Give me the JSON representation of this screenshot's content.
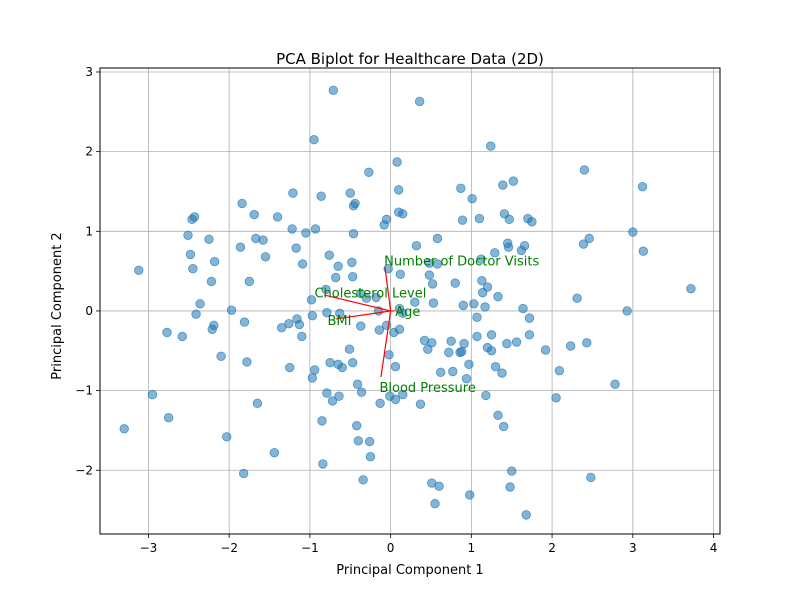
{
  "chart_data": {
    "type": "scatter",
    "title": "PCA Biplot for Healthcare Data (2D)",
    "xlabel": "Principal Component 1",
    "ylabel": "Principal Component 2",
    "xlim": [
      -3.6,
      4.08
    ],
    "ylim": [
      -2.8,
      3.05
    ],
    "grid": true,
    "x_ticks": [
      -3,
      -2,
      -1,
      0,
      1,
      2,
      3,
      4
    ],
    "y_ticks": [
      -2,
      -1,
      0,
      1,
      2,
      3
    ],
    "x_tick_labels": [
      "−3",
      "−2",
      "−1",
      "0",
      "1",
      "2",
      "3",
      "4"
    ],
    "y_tick_labels": [
      "−2",
      "−1",
      "0",
      "1",
      "2",
      "3"
    ],
    "point_color": "#1f77b4",
    "arrow_color": "#ff0000",
    "label_color": "#008000",
    "points": [
      [
        -3.3,
        -1.48
      ],
      [
        -3.12,
        0.51
      ],
      [
        -2.95,
        -1.05
      ],
      [
        -2.77,
        -0.27
      ],
      [
        -2.75,
        -1.34
      ],
      [
        -2.58,
        -0.32
      ],
      [
        -2.51,
        0.95
      ],
      [
        -2.48,
        0.71
      ],
      [
        -2.46,
        1.15
      ],
      [
        -2.43,
        1.18
      ],
      [
        -2.45,
        0.53
      ],
      [
        -2.41,
        -0.04
      ],
      [
        -2.36,
        0.09
      ],
      [
        -2.25,
        0.9
      ],
      [
        -2.22,
        0.37
      ],
      [
        -2.21,
        -0.23
      ],
      [
        -2.19,
        -0.18
      ],
      [
        -2.18,
        0.62
      ],
      [
        -2.1,
        -0.57
      ],
      [
        -2.03,
        -1.58
      ],
      [
        -1.97,
        0.01
      ],
      [
        -1.86,
        0.8
      ],
      [
        -1.84,
        1.35
      ],
      [
        -1.82,
        -2.04
      ],
      [
        -1.81,
        -0.14
      ],
      [
        -1.78,
        -0.64
      ],
      [
        -1.75,
        0.37
      ],
      [
        -1.69,
        1.21
      ],
      [
        -1.67,
        0.91
      ],
      [
        -1.65,
        -1.16
      ],
      [
        -1.58,
        0.89
      ],
      [
        -1.55,
        0.68
      ],
      [
        -1.44,
        -1.78
      ],
      [
        -1.4,
        1.18
      ],
      [
        -1.35,
        -0.21
      ],
      [
        -1.26,
        -0.16
      ],
      [
        -1.25,
        -0.71
      ],
      [
        -1.22,
        1.03
      ],
      [
        -1.21,
        1.48
      ],
      [
        -1.17,
        0.79
      ],
      [
        -1.16,
        -0.1
      ],
      [
        -1.13,
        -0.17
      ],
      [
        -1.1,
        -0.32
      ],
      [
        -1.09,
        0.59
      ],
      [
        -1.05,
        0.98
      ],
      [
        -0.98,
        0.14
      ],
      [
        -0.97,
        -0.06
      ],
      [
        -0.97,
        -0.84
      ],
      [
        -0.94,
        -0.74
      ],
      [
        -0.93,
        1.03
      ],
      [
        -0.95,
        2.15
      ],
      [
        -0.86,
        1.44
      ],
      [
        -0.85,
        -1.38
      ],
      [
        -0.84,
        -1.92
      ],
      [
        -0.8,
        0.27
      ],
      [
        -0.79,
        -1.03
      ],
      [
        -0.79,
        -0.02
      ],
      [
        -0.76,
        0.7
      ],
      [
        -0.75,
        -0.65
      ],
      [
        -0.72,
        -1.13
      ],
      [
        -0.71,
        2.77
      ],
      [
        -0.68,
        0.42
      ],
      [
        -0.65,
        0.56
      ],
      [
        -0.65,
        -0.67
      ],
      [
        -0.63,
        -0.03
      ],
      [
        -0.64,
        -1.07
      ],
      [
        -0.6,
        -0.71
      ],
      [
        -0.51,
        -0.48
      ],
      [
        -0.5,
        1.48
      ],
      [
        -0.48,
        0.61
      ],
      [
        -0.46,
        0.97
      ],
      [
        -0.47,
        0.43
      ],
      [
        -0.47,
        -0.65
      ],
      [
        -0.46,
        1.32
      ],
      [
        -0.44,
        1.35
      ],
      [
        -0.42,
        -1.44
      ],
      [
        -0.41,
        -0.92
      ],
      [
        -0.4,
        -1.63
      ],
      [
        -0.37,
        -0.19
      ],
      [
        -0.37,
        0.22
      ],
      [
        -0.36,
        -1.02
      ],
      [
        -0.34,
        -2.12
      ],
      [
        -0.3,
        0.16
      ],
      [
        -0.27,
        1.74
      ],
      [
        -0.26,
        -1.64
      ],
      [
        -0.25,
        -1.83
      ],
      [
        -0.18,
        0.17
      ],
      [
        -0.15,
        0.0
      ],
      [
        -0.14,
        -0.24
      ],
      [
        -0.13,
        -1.16
      ],
      [
        -0.08,
        1.08
      ],
      [
        -0.05,
        1.15
      ],
      [
        -0.05,
        -0.18
      ],
      [
        -0.03,
        0.53
      ],
      [
        -0.01,
        -1.07
      ],
      [
        -0.02,
        -0.55
      ],
      [
        0.04,
        -0.27
      ],
      [
        0.06,
        -0.7
      ],
      [
        0.06,
        -1.11
      ],
      [
        0.08,
        1.87
      ],
      [
        0.1,
        1.52
      ],
      [
        0.1,
        1.24
      ],
      [
        0.11,
        -0.23
      ],
      [
        0.11,
        0.03
      ],
      [
        0.12,
        0.46
      ],
      [
        0.15,
        1.22
      ],
      [
        0.15,
        -1.05
      ],
      [
        0.15,
        -0.03
      ],
      [
        0.3,
        0.11
      ],
      [
        0.32,
        0.82
      ],
      [
        0.36,
        2.63
      ],
      [
        0.37,
        -1.17
      ],
      [
        0.42,
        -0.37
      ],
      [
        0.46,
        -0.48
      ],
      [
        0.48,
        0.6
      ],
      [
        0.48,
        0.45
      ],
      [
        0.51,
        -2.16
      ],
      [
        0.51,
        -0.4
      ],
      [
        0.52,
        0.34
      ],
      [
        0.53,
        0.1
      ],
      [
        0.55,
        -2.42
      ],
      [
        0.58,
        0.59
      ],
      [
        0.58,
        0.91
      ],
      [
        0.6,
        -2.2
      ],
      [
        0.62,
        -0.77
      ],
      [
        0.72,
        -0.52
      ],
      [
        0.75,
        -0.38
      ],
      [
        0.77,
        -0.76
      ],
      [
        0.8,
        0.35
      ],
      [
        0.86,
        -0.52
      ],
      [
        0.87,
        1.54
      ],
      [
        0.88,
        -0.51
      ],
      [
        0.89,
        1.14
      ],
      [
        0.9,
        0.07
      ],
      [
        0.91,
        -0.41
      ],
      [
        0.94,
        -0.85
      ],
      [
        0.97,
        -0.67
      ],
      [
        0.98,
        -2.31
      ],
      [
        1.01,
        1.41
      ],
      [
        1.03,
        0.09
      ],
      [
        1.07,
        -0.08
      ],
      [
        1.07,
        -0.32
      ],
      [
        1.1,
        1.16
      ],
      [
        1.12,
        0.65
      ],
      [
        1.13,
        0.38
      ],
      [
        1.14,
        0.23
      ],
      [
        1.17,
        0.05
      ],
      [
        1.18,
        -1.06
      ],
      [
        1.2,
        -0.46
      ],
      [
        1.2,
        0.3
      ],
      [
        1.24,
        2.07
      ],
      [
        1.25,
        -0.3
      ],
      [
        1.25,
        -0.5
      ],
      [
        1.29,
        0.73
      ],
      [
        1.3,
        -0.7
      ],
      [
        1.33,
        -1.31
      ],
      [
        1.33,
        0.18
      ],
      [
        1.38,
        -0.78
      ],
      [
        1.39,
        1.58
      ],
      [
        1.4,
        -1.45
      ],
      [
        1.41,
        1.22
      ],
      [
        1.44,
        -0.41
      ],
      [
        1.45,
        0.85
      ],
      [
        1.46,
        0.8
      ],
      [
        1.47,
        1.15
      ],
      [
        1.48,
        -2.21
      ],
      [
        1.5,
        -2.01
      ],
      [
        1.52,
        1.63
      ],
      [
        1.56,
        -0.39
      ],
      [
        1.62,
        0.76
      ],
      [
        1.64,
        0.03
      ],
      [
        1.66,
        0.82
      ],
      [
        1.68,
        -2.56
      ],
      [
        1.7,
        1.16
      ],
      [
        1.72,
        -0.09
      ],
      [
        1.72,
        -0.3
      ],
      [
        1.75,
        1.12
      ],
      [
        1.92,
        -0.49
      ],
      [
        2.05,
        -1.09
      ],
      [
        2.09,
        -0.75
      ],
      [
        2.23,
        -0.44
      ],
      [
        2.31,
        0.16
      ],
      [
        2.39,
        0.84
      ],
      [
        2.4,
        1.77
      ],
      [
        2.43,
        -0.4
      ],
      [
        2.46,
        0.91
      ],
      [
        2.48,
        -2.09
      ],
      [
        2.78,
        -0.92
      ],
      [
        2.93,
        0.0
      ],
      [
        3.0,
        0.99
      ],
      [
        3.12,
        1.56
      ],
      [
        3.13,
        0.75
      ],
      [
        3.72,
        0.28
      ]
    ],
    "loadings": [
      {
        "name": "Number of Doctor Visits",
        "x": -0.07,
        "y": 0.55
      },
      {
        "name": "Cholesterol Level",
        "x": -0.82,
        "y": 0.2
      },
      {
        "name": "Age",
        "x": 0.05,
        "y": 0.0
      },
      {
        "name": "BMI",
        "x": -0.68,
        "y": -0.1
      },
      {
        "name": "Blood Pressure",
        "x": -0.12,
        "y": -0.83
      }
    ]
  }
}
